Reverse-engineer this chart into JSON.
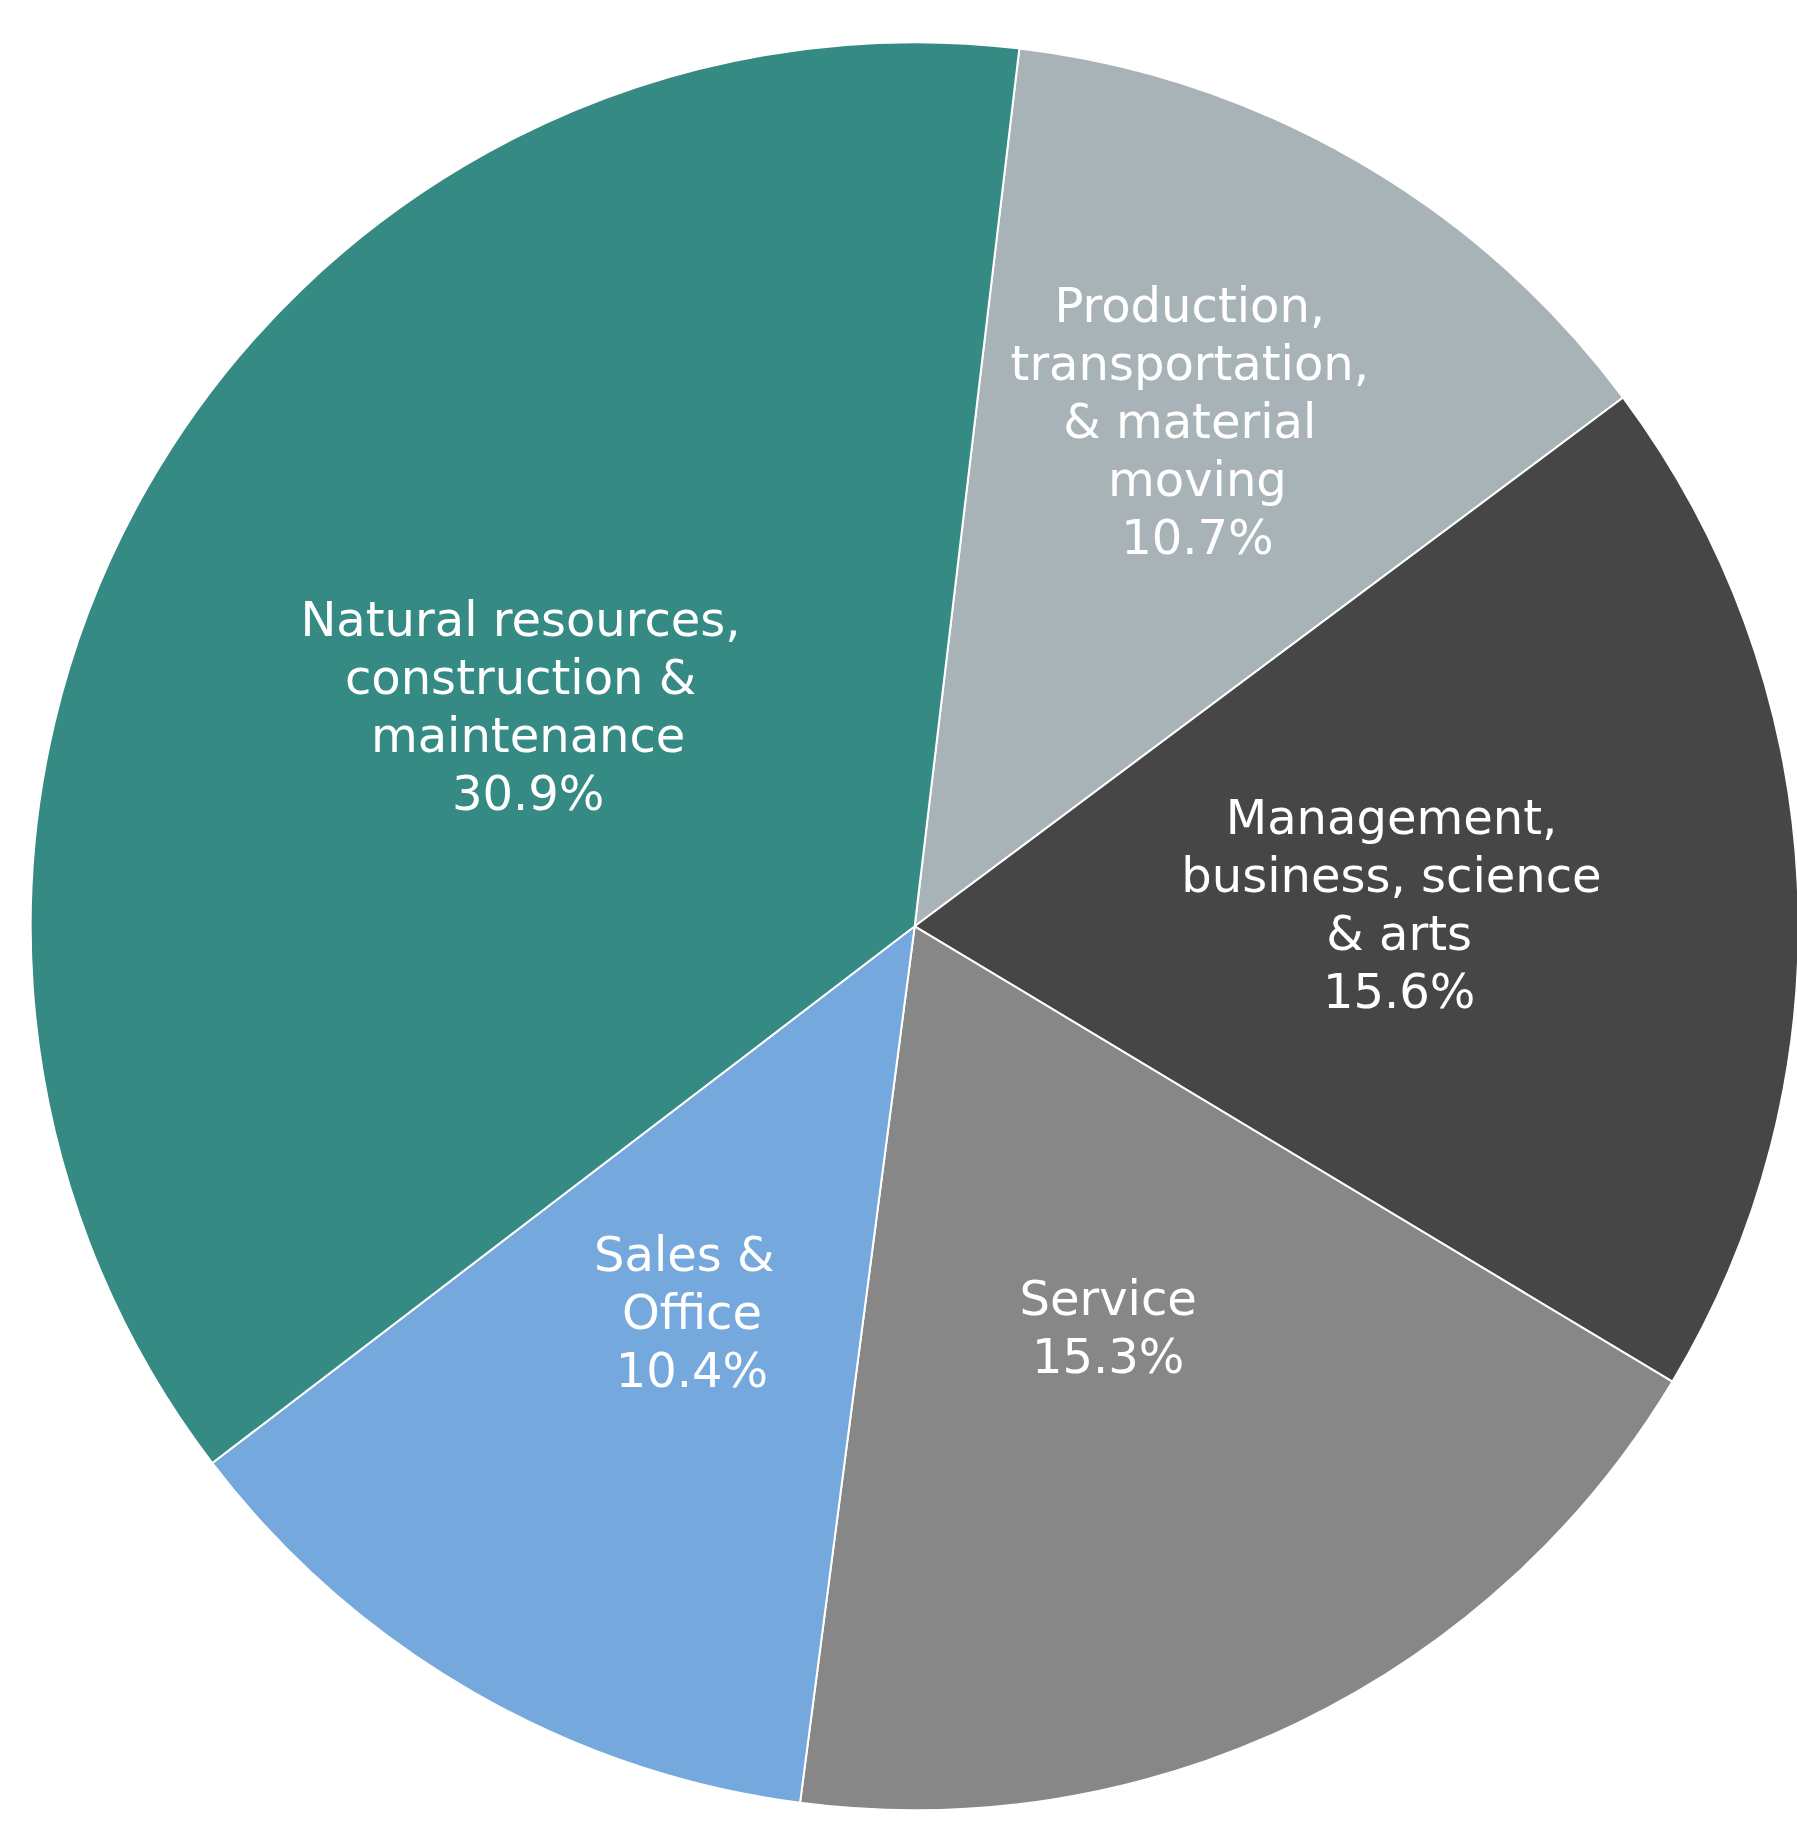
{
  "chart_data": {
    "type": "pie",
    "categories": [
      "Production, transportation, & material moving",
      "Management, business, science & arts",
      "Service",
      "Sales & Office",
      "Natural resources, construction & maintenance"
    ],
    "values": [
      10.7,
      15.6,
      15.3,
      10.4,
      30.9
    ],
    "value_labels": [
      "10.7%",
      "15.6%",
      "15.3%",
      "10.4%",
      "30.9%"
    ],
    "colors": [
      "#a8b3b8",
      "#464646",
      "#878787",
      "#75a8dc",
      "#358a84"
    ],
    "legend": false
  }
}
